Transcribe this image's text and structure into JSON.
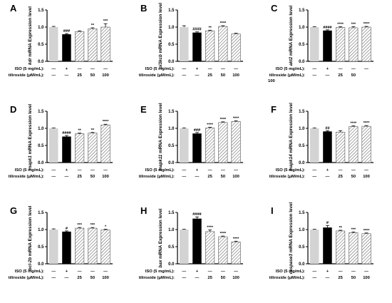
{
  "style": {
    "colors": {
      "control": "#d3d3d3",
      "iso": "#000000",
      "hatch_fill": "#ffffff",
      "hatch_line": "#555555",
      "axis": "#000000"
    },
    "bar_patterns": [
      "solid-control",
      "solid-iso",
      "hatched",
      "hatched",
      "hatched"
    ]
  },
  "row_labels": {
    "iso": "ISO (5 mg/mL):",
    "tiliroside": "tiliroside (μM/mL):",
    "tiliroside_wrapped_prefix": "tiliroside (μM/mL):",
    "iso_values": [
      "—",
      "+",
      "—",
      "—",
      "—"
    ],
    "tiliroside_values": [
      "—",
      "—",
      "25",
      "50",
      "100"
    ]
  },
  "chart_data": [
    {
      "type": "bar",
      "panel": "A",
      "ylabel_gene": "kdr",
      "ylabel_rest": " mRNA Expression level",
      "ylim": [
        0,
        1.5
      ],
      "yticks": [
        "0.0",
        "0.5",
        "1.0",
        "1.5"
      ],
      "values": [
        1.0,
        0.79,
        0.87,
        0.95,
        1.0
      ],
      "errors": [
        0.02,
        0.02,
        0.02,
        0.03,
        0.1
      ],
      "significance": [
        "",
        "###",
        "",
        "**",
        "***"
      ],
      "wrapped_tiliroside": false
    },
    {
      "type": "bar",
      "panel": "B",
      "ylabel_gene": "pi3kcb",
      "ylabel_rest": " mRNA Expression level",
      "ylim": [
        0,
        1.5
      ],
      "yticks": [
        "0.0",
        "0.5",
        "1.0",
        "1.5"
      ],
      "values": [
        1.0,
        0.84,
        0.89,
        1.02,
        0.8
      ],
      "errors": [
        0.04,
        0.02,
        0.02,
        0.02,
        0.02
      ],
      "significance": [
        "",
        "####",
        "**",
        "****",
        ""
      ],
      "wrapped_tiliroside": false
    },
    {
      "type": "bar",
      "panel": "C",
      "ylabel_gene": "akt2",
      "ylabel_rest": " mRNA Expression level",
      "ylim": [
        0,
        1.5
      ],
      "yticks": [
        "0.0",
        "0.5",
        "1.0",
        "1.5"
      ],
      "values": [
        1.0,
        0.9,
        0.99,
        0.98,
        1.0
      ],
      "errors": [
        0.01,
        0.02,
        0.02,
        0.03,
        0.02
      ],
      "significance": [
        "",
        "####",
        "****",
        "***",
        "****"
      ],
      "wrapped_tiliroside": true
    },
    {
      "type": "bar",
      "panel": "D",
      "ylabel_gene": "mapk1",
      "ylabel_rest": " mRNA Expression level",
      "ylim": [
        0,
        1.5
      ],
      "yticks": [
        "0.0",
        "0.5",
        "1.0",
        "1.5"
      ],
      "values": [
        1.0,
        0.76,
        0.84,
        0.86,
        1.1
      ],
      "errors": [
        0.01,
        0.03,
        0.02,
        0.02,
        0.02
      ],
      "significance": [
        "",
        "####",
        "**",
        "**",
        "****"
      ],
      "wrapped_tiliroside": false
    },
    {
      "type": "bar",
      "panel": "E",
      "ylabel_gene": "mapk11",
      "ylabel_rest": " mRNA Expression level",
      "ylim": [
        0,
        1.5
      ],
      "yticks": [
        "0.0",
        "0.5",
        "1.0",
        "1.5"
      ],
      "values": [
        1.0,
        0.85,
        1.01,
        1.17,
        1.2
      ],
      "errors": [
        0.01,
        0.03,
        0.02,
        0.02,
        0.02
      ],
      "significance": [
        "",
        "###",
        "****",
        "****",
        "****"
      ],
      "wrapped_tiliroside": false
    },
    {
      "type": "bar",
      "panel": "F",
      "ylabel_gene": "mapk14",
      "ylabel_rest": " mRNA Expression level",
      "ylim": [
        0,
        1.5
      ],
      "yticks": [
        "0.0",
        "0.5",
        "1.0",
        "1.5"
      ],
      "values": [
        1.0,
        0.91,
        0.89,
        1.05,
        1.06
      ],
      "errors": [
        0.01,
        0.02,
        0.04,
        0.02,
        0.02
      ],
      "significance": [
        "",
        "##",
        "",
        "****",
        "****"
      ],
      "wrapped_tiliroside": false
    },
    {
      "type": "bar",
      "panel": "G",
      "ylabel_gene": "bcl-2b",
      "ylabel_rest": " mRNA Expression level",
      "ylim": [
        0,
        1.5
      ],
      "yticks": [
        "0.0",
        "0.5",
        "1.0",
        "1.5"
      ],
      "values": [
        1.0,
        0.94,
        1.04,
        1.04,
        0.99
      ],
      "errors": [
        0.02,
        0.02,
        0.02,
        0.02,
        0.02
      ],
      "significance": [
        "",
        "#",
        "***",
        "***",
        "*"
      ],
      "wrapped_tiliroside": false
    },
    {
      "type": "bar",
      "panel": "H",
      "ylabel_gene": "bax",
      "ylabel_rest": " mRNA Expression level",
      "ylim": [
        0,
        1.5
      ],
      "yticks": [
        "0.0",
        "0.5",
        "1.0",
        "1.5"
      ],
      "values": [
        1.0,
        1.32,
        0.94,
        0.79,
        0.64
      ],
      "errors": [
        0.01,
        0.05,
        0.05,
        0.02,
        0.02
      ],
      "significance": [
        "",
        "####",
        "****",
        "****",
        "****"
      ],
      "wrapped_tiliroside": false
    },
    {
      "type": "bar",
      "panel": "I",
      "ylabel_gene": "caspase3",
      "ylabel_rest": " mRNA Expression level",
      "ylim": [
        0,
        1.5
      ],
      "yticks": [
        "0.0",
        "0.5",
        "1.0",
        "1.5"
      ],
      "values": [
        1.0,
        1.06,
        0.96,
        0.91,
        0.88
      ],
      "errors": [
        0.01,
        0.06,
        0.02,
        0.02,
        0.02
      ],
      "significance": [
        "",
        "#",
        "**",
        "***",
        "****"
      ],
      "wrapped_tiliroside": false
    }
  ]
}
